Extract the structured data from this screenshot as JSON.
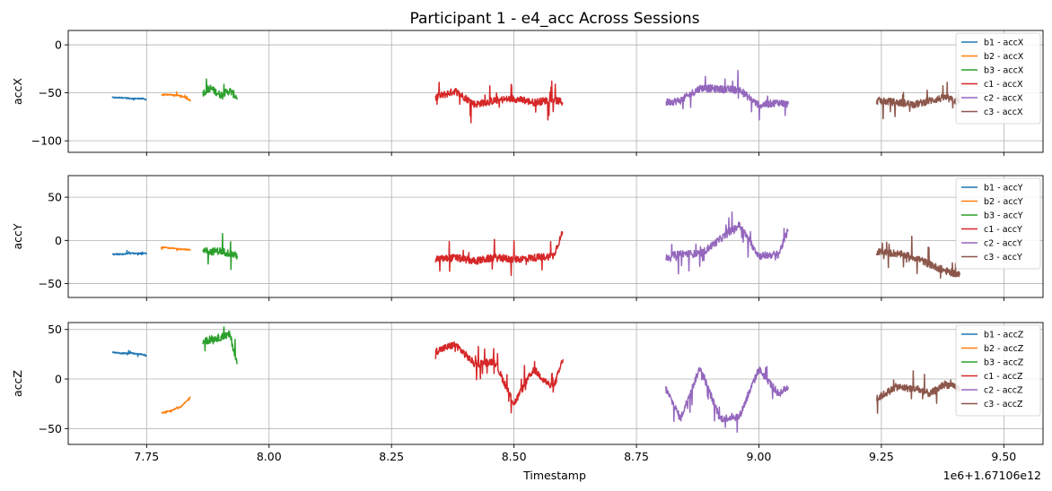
{
  "chart_data": {
    "type": "line",
    "title": "Participant 1 - e4_acc Across Sessions",
    "xlabel": "Timestamp",
    "x_offset_label": "1e6+1.67106e12",
    "x_ticks": [
      "7.75",
      "8.00",
      "8.25",
      "8.50",
      "8.75",
      "9.00",
      "9.25",
      "9.50"
    ],
    "x_tick_values": [
      7.75,
      8.0,
      8.25,
      8.5,
      8.75,
      9.0,
      9.25,
      9.5
    ],
    "xlim": [
      7.59,
      9.58
    ],
    "grid": true,
    "legend_position": "upper right",
    "colors": {
      "b1": "#1f77b4",
      "b2": "#ff7f0e",
      "b3": "#2ca02c",
      "c1": "#d62728",
      "c2": "#9467bd",
      "c3": "#8c564b"
    },
    "panels": [
      {
        "ylabel": "accX",
        "ylim": [
          -112,
          15
        ],
        "y_ticks": [
          "0",
          "−50",
          "−100"
        ],
        "y_tick_values": [
          0,
          -50,
          -100
        ],
        "series": [
          {
            "name": "b1 - accX",
            "session": "b1",
            "x": [
              7.68,
              7.7,
              7.72,
              7.74,
              7.75
            ],
            "y": [
              -55,
              -55,
              -56,
              -56,
              -57
            ]
          },
          {
            "name": "b2 - accX",
            "session": "b2",
            "x": [
              7.78,
              7.8,
              7.82,
              7.84
            ],
            "y": [
              -52,
              -52,
              -53,
              -58
            ]
          },
          {
            "name": "b3 - accX",
            "session": "b3",
            "x": [
              7.865,
              7.88,
              7.9,
              7.92,
              7.935
            ],
            "y": [
              -50,
              -45,
              -52,
              -48,
              -55
            ]
          },
          {
            "name": "c1 - accX",
            "session": "c1",
            "x": [
              8.34,
              8.38,
              8.42,
              8.46,
              8.5,
              8.54,
              8.58,
              8.6
            ],
            "y": [
              -55,
              -48,
              -62,
              -58,
              -56,
              -60,
              -57,
              -60
            ]
          },
          {
            "name": "c2 - accX",
            "session": "c2",
            "x": [
              8.81,
              8.84,
              8.88,
              8.92,
              8.96,
              9.0,
              9.04,
              9.06
            ],
            "y": [
              -60,
              -58,
              -45,
              -46,
              -47,
              -63,
              -60,
              -62
            ]
          },
          {
            "name": "c3 - accX",
            "session": "c3",
            "x": [
              9.24,
              9.28,
              9.32,
              9.35,
              9.38,
              9.41
            ],
            "y": [
              -58,
              -60,
              -62,
              -58,
              -55,
              -60
            ]
          }
        ]
      },
      {
        "ylabel": "accY",
        "ylim": [
          -66,
          75
        ],
        "y_ticks": [
          "50",
          "0",
          "−50"
        ],
        "y_tick_values": [
          50,
          0,
          -50
        ],
        "series": [
          {
            "name": "b1 - accY",
            "session": "b1",
            "x": [
              7.68,
              7.7,
              7.72,
              7.74,
              7.75
            ],
            "y": [
              -16,
              -16,
              -15,
              -15,
              -15
            ]
          },
          {
            "name": "b2 - accY",
            "session": "b2",
            "x": [
              7.78,
              7.8,
              7.82,
              7.84
            ],
            "y": [
              -8,
              -9,
              -10,
              -11
            ]
          },
          {
            "name": "b3 - accY",
            "session": "b3",
            "x": [
              7.865,
              7.88,
              7.9,
              7.92,
              7.935
            ],
            "y": [
              -10,
              -13,
              -12,
              -15,
              -18
            ]
          },
          {
            "name": "c1 - accY",
            "session": "c1",
            "x": [
              8.34,
              8.38,
              8.42,
              8.46,
              8.5,
              8.54,
              8.58,
              8.6
            ],
            "y": [
              -22,
              -20,
              -24,
              -20,
              -22,
              -20,
              -18,
              10
            ]
          },
          {
            "name": "c2 - accY",
            "session": "c2",
            "x": [
              8.81,
              8.84,
              8.88,
              8.92,
              8.96,
              9.0,
              9.04,
              9.06
            ],
            "y": [
              -20,
              -15,
              -16,
              1,
              18,
              -18,
              -16,
              12
            ]
          },
          {
            "name": "c3 - accY",
            "session": "c3",
            "x": [
              9.24,
              9.28,
              9.32,
              9.35,
              9.38,
              9.41
            ],
            "y": [
              -13,
              -15,
              -20,
              -28,
              -35,
              -40
            ]
          }
        ]
      },
      {
        "ylabel": "accZ",
        "ylim": [
          -66,
          57
        ],
        "y_ticks": [
          "50",
          "0",
          "−50"
        ],
        "y_tick_values": [
          50,
          0,
          -50
        ],
        "series": [
          {
            "name": "b1 - accZ",
            "session": "b1",
            "x": [
              7.68,
              7.7,
              7.72,
              7.74,
              7.75
            ],
            "y": [
              27,
              26,
              26,
              25,
              23
            ]
          },
          {
            "name": "b2 - accZ",
            "session": "b2",
            "x": [
              7.78,
              7.8,
              7.82,
              7.84
            ],
            "y": [
              -34,
              -32,
              -28,
              -18
            ]
          },
          {
            "name": "b3 - accZ",
            "session": "b3",
            "x": [
              7.865,
              7.88,
              7.9,
              7.92,
              7.935
            ],
            "y": [
              38,
              40,
              42,
              45,
              15
            ]
          },
          {
            "name": "c1 - accZ",
            "session": "c1",
            "x": [
              8.34,
              8.38,
              8.42,
              8.46,
              8.5,
              8.54,
              8.58,
              8.6
            ],
            "y": [
              28,
              35,
              15,
              18,
              -25,
              10,
              -10,
              20
            ]
          },
          {
            "name": "c2 - accZ",
            "session": "c2",
            "x": [
              8.81,
              8.84,
              8.88,
              8.92,
              8.96,
              9.0,
              9.04,
              9.06
            ],
            "y": [
              -10,
              -40,
              12,
              -40,
              -38,
              10,
              -15,
              -8
            ]
          },
          {
            "name": "c3 - accZ",
            "session": "c3",
            "x": [
              9.24,
              9.28,
              9.32,
              9.35,
              9.38,
              9.41
            ],
            "y": [
              -20,
              -8,
              -10,
              -15,
              -5,
              -10
            ]
          }
        ]
      }
    ]
  }
}
